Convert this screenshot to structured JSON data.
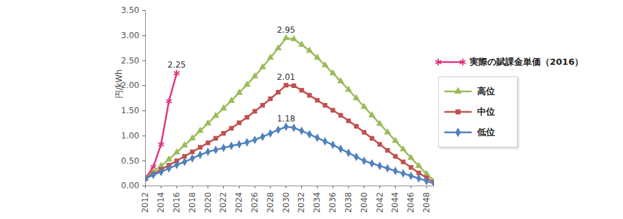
{
  "chart_data": {
    "type": "line",
    "ylabel": "円/kWh",
    "x": [
      2012,
      2013,
      2014,
      2015,
      2016,
      2017,
      2018,
      2019,
      2020,
      2021,
      2022,
      2023,
      2024,
      2025,
      2026,
      2027,
      2028,
      2029,
      2030,
      2031,
      2032,
      2033,
      2034,
      2035,
      2036,
      2037,
      2038,
      2039,
      2040,
      2041,
      2042,
      2043,
      2044,
      2045,
      2046,
      2047,
      2048,
      2049
    ],
    "xlim": [
      2012,
      2049
    ],
    "xticks": [
      2012,
      2014,
      2016,
      2018,
      2020,
      2022,
      2024,
      2026,
      2028,
      2030,
      2032,
      2034,
      2036,
      2038,
      2040,
      2042,
      2044,
      2046,
      2048
    ],
    "ylim": [
      0,
      3.5
    ],
    "yticks": [
      {
        "value": 0,
        "label": "0.00"
      },
      {
        "value": 0.5,
        "label": "0.50"
      },
      {
        "value": 1,
        "label": "1.00"
      },
      {
        "value": 1.5,
        "label": "1.50"
      },
      {
        "value": 2,
        "label": "2.00"
      },
      {
        "value": 2.5,
        "label": "2.50"
      },
      {
        "value": 3,
        "label": "3.00"
      },
      {
        "value": 3.5,
        "label": "3.50"
      }
    ],
    "grid": false,
    "legend": "right",
    "series": [
      {
        "name": "実際の賦課金単価（2016）",
        "color": "#e0347f",
        "marker": "asterisk",
        "values": [
          0.15,
          0.38,
          0.83,
          1.69,
          2.25,
          null,
          null,
          null,
          null,
          null,
          null,
          null,
          null,
          null,
          null,
          null,
          null,
          null,
          null,
          null,
          null,
          null,
          null,
          null,
          null,
          null,
          null,
          null,
          null,
          null,
          null,
          null,
          null,
          null,
          null,
          null,
          null,
          null
        ]
      },
      {
        "name": "高位",
        "color": "#9bbb59",
        "marker": "triangle",
        "values": [
          0.15,
          0.28,
          0.4,
          0.53,
          0.67,
          0.81,
          0.95,
          1.1,
          1.25,
          1.4,
          1.55,
          1.7,
          1.86,
          2.02,
          2.19,
          2.37,
          2.56,
          2.75,
          2.95,
          2.93,
          2.82,
          2.7,
          2.56,
          2.41,
          2.25,
          2.09,
          1.92,
          1.75,
          1.58,
          1.41,
          1.24,
          1.07,
          0.9,
          0.73,
          0.56,
          0.4,
          0.24,
          0.1
        ]
      },
      {
        "name": "中位",
        "color": "#c0504d",
        "marker": "square",
        "values": [
          0.15,
          0.24,
          0.33,
          0.41,
          0.5,
          0.59,
          0.68,
          0.77,
          0.86,
          0.95,
          1.05,
          1.15,
          1.26,
          1.37,
          1.49,
          1.61,
          1.74,
          1.87,
          2.01,
          2.0,
          1.91,
          1.81,
          1.71,
          1.61,
          1.51,
          1.41,
          1.3,
          1.19,
          1.07,
          0.95,
          0.83,
          0.71,
          0.59,
          0.48,
          0.37,
          0.26,
          0.16,
          0.07
        ]
      },
      {
        "name": "低位",
        "color": "#4f81bd",
        "marker": "diamond",
        "values": [
          0.15,
          0.22,
          0.28,
          0.35,
          0.42,
          0.48,
          0.55,
          0.62,
          0.68,
          0.72,
          0.76,
          0.8,
          0.83,
          0.87,
          0.92,
          0.98,
          1.05,
          1.12,
          1.18,
          1.16,
          1.1,
          1.03,
          0.96,
          0.89,
          0.82,
          0.74,
          0.66,
          0.58,
          0.5,
          0.45,
          0.4,
          0.35,
          0.3,
          0.25,
          0.2,
          0.15,
          0.1,
          0.04
        ]
      }
    ],
    "annotations": [
      {
        "x": 2016,
        "y": 2.25,
        "text": "2.25"
      },
      {
        "x": 2030,
        "y": 2.95,
        "text": "2.95"
      },
      {
        "x": 2030,
        "y": 2.01,
        "text": "2.01"
      },
      {
        "x": 2030,
        "y": 1.18,
        "text": "1.18"
      }
    ]
  }
}
